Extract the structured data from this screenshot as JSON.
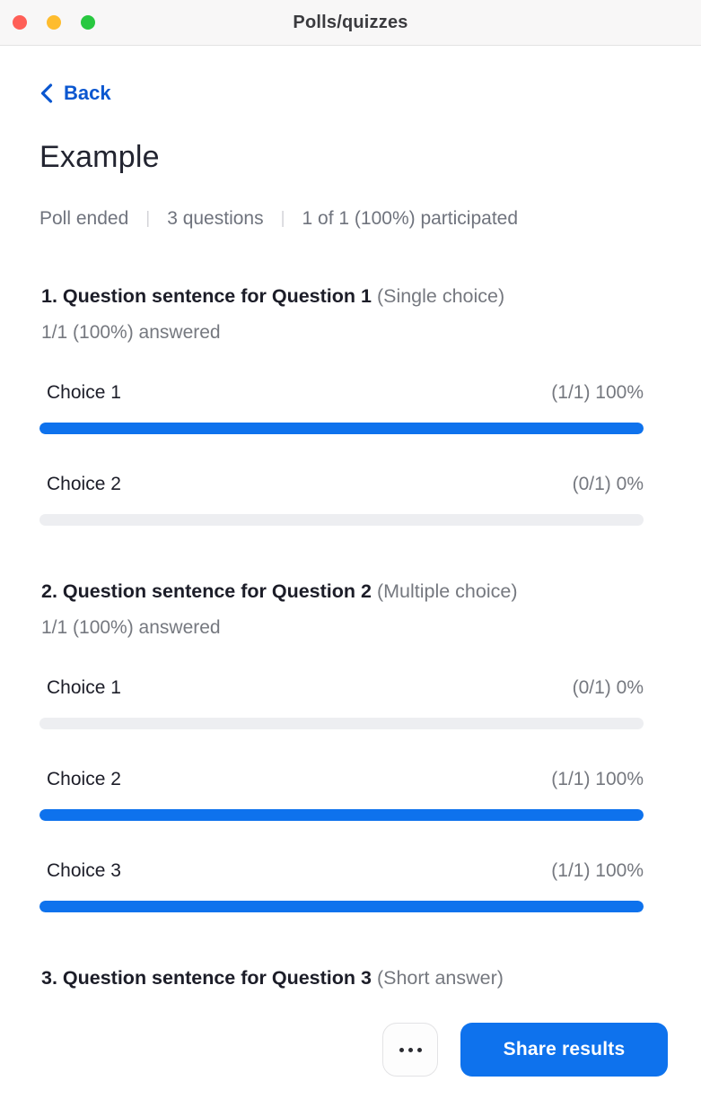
{
  "window": {
    "title": "Polls/quizzes"
  },
  "traffic_lights": {
    "close_color": "#ff5f57",
    "minimize_color": "#febc2e",
    "zoom_color": "#28c840"
  },
  "colors": {
    "accent_blue": "#0e72ed",
    "link_blue": "#0b57d0",
    "bar_track": "#edeef1",
    "text_dark": "#1c1d28",
    "text_gray": "#75787f"
  },
  "icons": {
    "back": "chevron-left-icon",
    "more": "ellipsis-icon"
  },
  "back": {
    "label": "Back"
  },
  "header": {
    "title": "Example",
    "meta": [
      "Poll ended",
      "3 questions",
      "1 of 1 (100%) participated"
    ],
    "meta_separator": "|"
  },
  "questions": [
    {
      "number": "1.",
      "text": "Question sentence for Question 1",
      "type": "(Single choice)",
      "answered": "1/1 (100%) answered",
      "choices": [
        {
          "label": "Choice 1",
          "stat": "(1/1) 100%",
          "percent": 100
        },
        {
          "label": "Choice 2",
          "stat": "(0/1) 0%",
          "percent": 0
        }
      ]
    },
    {
      "number": "2.",
      "text": "Question sentence for Question 2",
      "type": "(Multiple choice)",
      "answered": "1/1 (100%) answered",
      "choices": [
        {
          "label": "Choice 1",
          "stat": "(0/1) 0%",
          "percent": 0
        },
        {
          "label": "Choice 2",
          "stat": "(1/1) 100%",
          "percent": 100
        },
        {
          "label": "Choice 3",
          "stat": "(1/1) 100%",
          "percent": 100
        }
      ]
    },
    {
      "number": "3.",
      "text": "Question sentence for Question 3",
      "type": "(Short answer)",
      "answered": "",
      "choices": []
    }
  ],
  "footer": {
    "share_label": "Share results"
  }
}
